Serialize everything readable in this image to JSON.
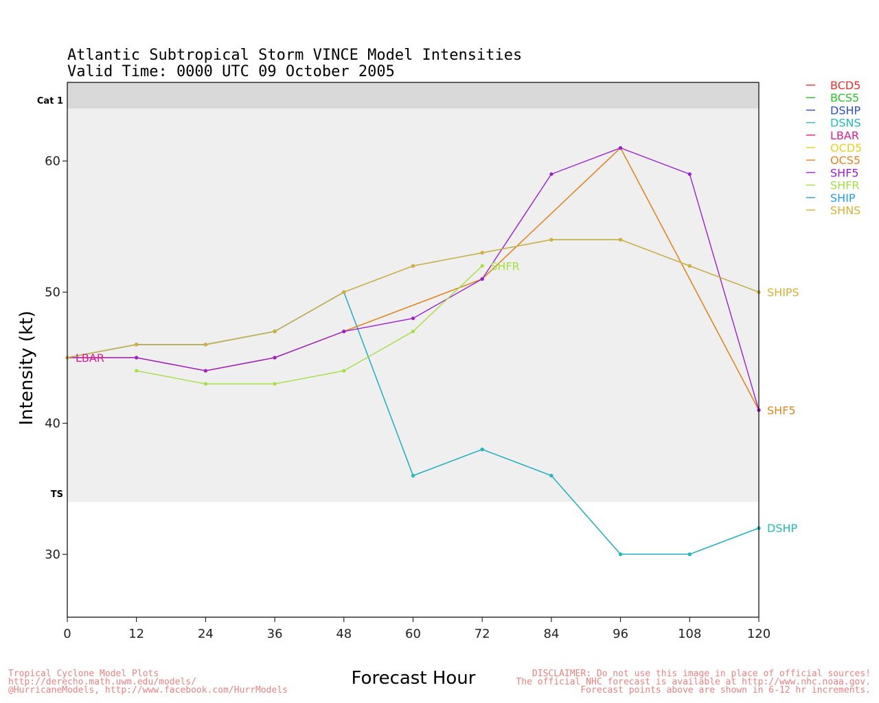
{
  "chart_data": {
    "type": "line",
    "title": "Atlantic Subtropical Storm VINCE Model Intensities",
    "subtitle": "Valid Time: 0000 UTC 09 October 2005",
    "xlabel": "Forecast Hour",
    "ylabel": "Intensity (kt)",
    "xlim": [
      0,
      120
    ],
    "ylim": [
      25.2,
      66
    ],
    "xticks": [
      0,
      12,
      24,
      36,
      48,
      60,
      72,
      84,
      96,
      108,
      120
    ],
    "yticks": [
      30,
      40,
      50,
      60
    ],
    "bands": [
      {
        "label": "TS",
        "from": 34,
        "to": 64,
        "color": "#efefef"
      },
      {
        "label": "Cat 1",
        "from": 64,
        "to": 66,
        "color": "#d9d9d9"
      }
    ],
    "legend_position": "right",
    "series": [
      {
        "name": "BCD5",
        "color": "#ee2b2b",
        "x": [],
        "y": []
      },
      {
        "name": "BCS5",
        "color": "#22c722",
        "x": [],
        "y": []
      },
      {
        "name": "DSHP",
        "color": "#2b4bd6",
        "x": [
          0,
          12,
          24,
          36,
          48,
          60,
          72,
          84,
          96,
          108,
          120
        ],
        "y": [
          45,
          46,
          46,
          47,
          50,
          36,
          38,
          36,
          30,
          30,
          32
        ]
      },
      {
        "name": "DSNS",
        "color": "#1fbcbc",
        "x": [
          0,
          12,
          24,
          36,
          48,
          60,
          72,
          84,
          96,
          108,
          120
        ],
        "y": [
          45,
          46,
          46,
          47,
          50,
          36,
          38,
          36,
          30,
          30,
          32
        ]
      },
      {
        "name": "LBAR",
        "color": "#e01c8c",
        "x": [
          0,
          12,
          24,
          36,
          48,
          72,
          96,
          120
        ],
        "y": [
          45,
          45,
          44,
          45,
          47,
          51,
          61,
          41
        ]
      },
      {
        "name": "OCD5",
        "color": "#e6d21e",
        "x": [
          0,
          12,
          24,
          36,
          48,
          72,
          96,
          120
        ],
        "y": [
          45,
          45,
          44,
          45,
          47,
          51,
          61,
          41
        ]
      },
      {
        "name": "OCS5",
        "color": "#e0861e",
        "x": [
          0,
          12,
          24,
          36,
          48,
          72,
          96,
          120
        ],
        "y": [
          45,
          45,
          44,
          45,
          47,
          51,
          61,
          41
        ]
      },
      {
        "name": "SHF5",
        "color": "#9b1ed2",
        "x": [
          0,
          12,
          24,
          36,
          48,
          60,
          72,
          84,
          96,
          108,
          120
        ],
        "y": [
          45,
          45,
          44,
          45,
          47,
          48,
          51,
          59,
          61,
          59,
          41
        ]
      },
      {
        "name": "SHFR",
        "color": "#a2e03c",
        "x": [
          12,
          24,
          36,
          48,
          60,
          72
        ],
        "y": [
          44,
          43,
          43,
          44,
          47,
          52
        ]
      },
      {
        "name": "SHIP",
        "color": "#1ea0e6",
        "x": [
          0,
          12,
          24,
          36,
          48,
          60,
          72,
          84,
          96,
          108,
          120
        ],
        "y": [
          45,
          46,
          46,
          47,
          50,
          52,
          53,
          54,
          54,
          52,
          50
        ]
      },
      {
        "name": "SHNS",
        "color": "#d8b030",
        "x": [
          0,
          12,
          24,
          36,
          48,
          60,
          72,
          84,
          96,
          108,
          120
        ],
        "y": [
          45,
          46,
          46,
          47,
          50,
          52,
          53,
          54,
          54,
          52,
          50
        ]
      }
    ],
    "annotations": [
      {
        "text": "LBAR",
        "x": 0,
        "y": 45,
        "color": "#e01c8c"
      },
      {
        "text": "SHFR",
        "x": 72,
        "y": 52,
        "color": "#a2e03c"
      },
      {
        "text": "SHIPS",
        "x": 120,
        "y": 50,
        "color": "#d8b030"
      },
      {
        "text": "DSHP",
        "x": 120,
        "y": 32,
        "color": "#1fbcbc"
      },
      {
        "text": "SHF5",
        "x": 120,
        "y": 41,
        "color": "#e0861e"
      }
    ]
  },
  "footer": {
    "left": [
      "Tropical Cyclone Model Plots",
      "http://derecho.math.uwm.edu/models/",
      "@HurricaneModels, http://www.facebook.com/HurrModels"
    ],
    "right": [
      "DISCLAIMER: Do not use this image in place of official sources!",
      "The official NHC forecast is available at http://www.nhc.noaa.gov.",
      "Forecast points above are shown in 6-12 hr increments."
    ]
  }
}
